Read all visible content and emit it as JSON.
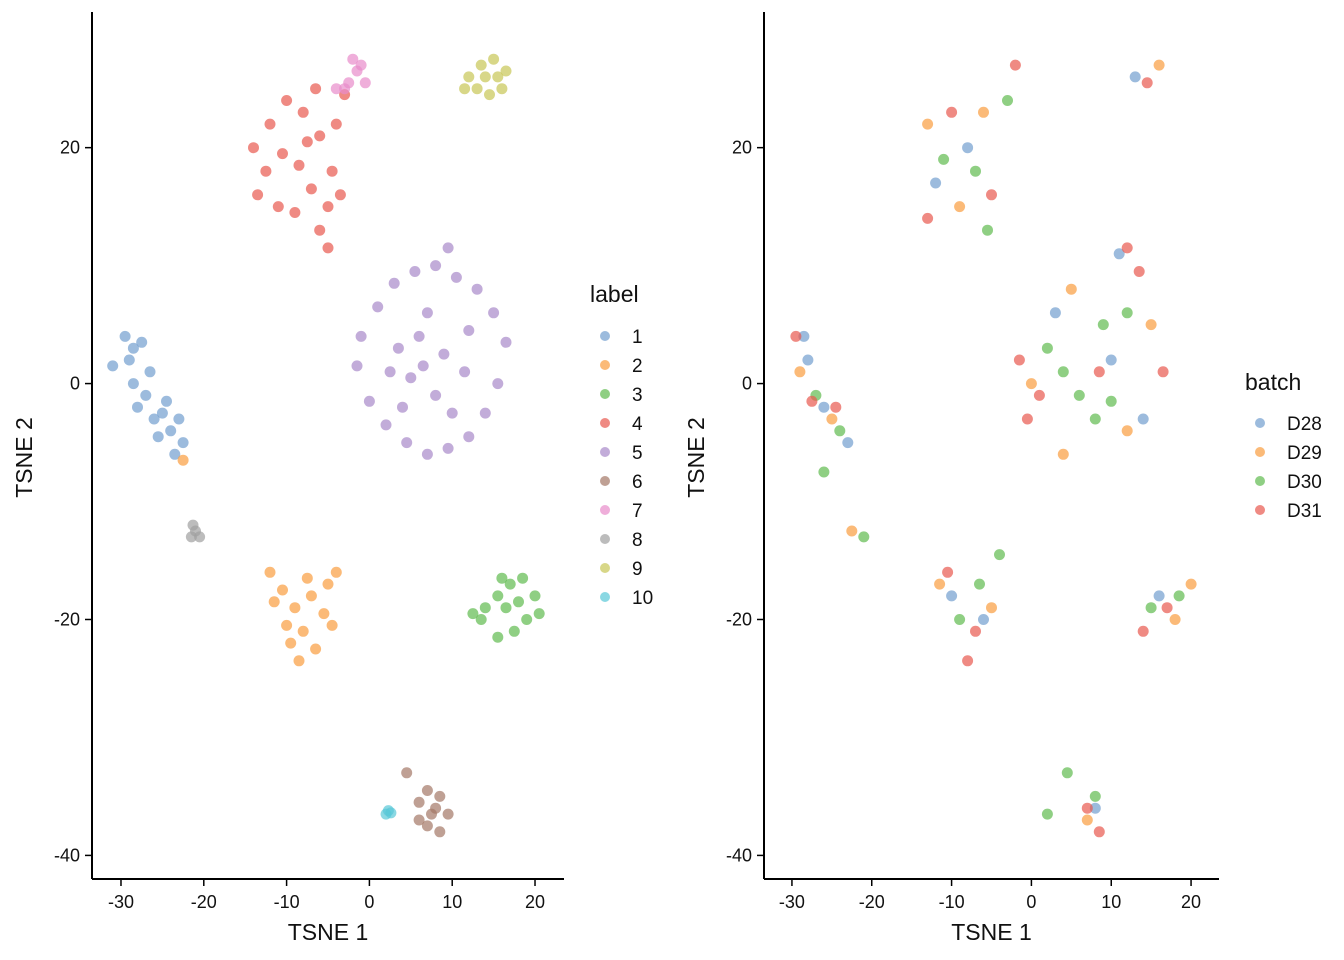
{
  "chart_data": [
    {
      "type": "scatter",
      "xlabel": "TSNE 1",
      "ylabel": "TSNE 2",
      "xlim": [
        -33.5,
        23.5
      ],
      "ylim": [
        -42,
        31.5
      ],
      "xticks": [
        -30,
        -20,
        -10,
        0,
        10,
        20
      ],
      "yticks": [
        -40,
        -20,
        0,
        20
      ],
      "xtick_labels": [
        "-30",
        "-20",
        "-10",
        "0",
        "10",
        "20"
      ],
      "ytick_labels": [
        "-40",
        "-20",
        "0",
        "20"
      ],
      "legend_title": "label",
      "legend_position": "right",
      "grid": false,
      "series": [
        {
          "name": "1",
          "color": "#729ECE",
          "values": [
            [
              -29.5,
              4.0
            ],
            [
              -29.0,
              2.0
            ],
            [
              -28.5,
              0.0
            ],
            [
              -28.0,
              -2.0
            ],
            [
              -27.0,
              -1.0
            ],
            [
              -26.0,
              -3.0
            ],
            [
              -25.0,
              -2.5
            ],
            [
              -24.0,
              -4.0
            ],
            [
              -23.0,
              -3.0
            ],
            [
              -22.5,
              -5.0
            ],
            [
              -27.5,
              3.5
            ],
            [
              -26.5,
              1.0
            ],
            [
              -25.5,
              -4.5
            ],
            [
              -24.5,
              -1.5
            ],
            [
              -23.5,
              -6.0
            ],
            [
              -28.5,
              3.0
            ],
            [
              -31.0,
              1.5
            ]
          ]
        },
        {
          "name": "2",
          "color": "#F99D3F",
          "values": [
            [
              -12.0,
              -16.0
            ],
            [
              -10.5,
              -17.5
            ],
            [
              -9.0,
              -19.0
            ],
            [
              -8.0,
              -21.0
            ],
            [
              -7.0,
              -18.0
            ],
            [
              -5.5,
              -19.5
            ],
            [
              -4.5,
              -20.5
            ],
            [
              -6.5,
              -22.5
            ],
            [
              -8.5,
              -23.5
            ],
            [
              -10.0,
              -20.5
            ],
            [
              -11.5,
              -18.5
            ],
            [
              -5.0,
              -17.0
            ],
            [
              -7.5,
              -16.5
            ],
            [
              -9.5,
              -22.0
            ],
            [
              -4.0,
              -16.0
            ],
            [
              -22.5,
              -6.5
            ]
          ]
        },
        {
          "name": "3",
          "color": "#5FBA4E",
          "values": [
            [
              14.0,
              -19.0
            ],
            [
              15.5,
              -18.0
            ],
            [
              17.0,
              -17.0
            ],
            [
              18.5,
              -16.5
            ],
            [
              20.0,
              -18.0
            ],
            [
              19.0,
              -20.0
            ],
            [
              17.5,
              -21.0
            ],
            [
              15.5,
              -21.5
            ],
            [
              13.5,
              -20.0
            ],
            [
              16.5,
              -19.0
            ],
            [
              18.0,
              -18.5
            ],
            [
              12.5,
              -19.5
            ],
            [
              20.5,
              -19.5
            ],
            [
              16.0,
              -16.5
            ]
          ]
        },
        {
          "name": "4",
          "color": "#E8594F",
          "values": [
            [
              -14.0,
              20.0
            ],
            [
              -12.0,
              22.0
            ],
            [
              -10.0,
              24.0
            ],
            [
              -8.0,
              23.0
            ],
            [
              -6.0,
              21.0
            ],
            [
              -4.5,
              18.0
            ],
            [
              -5.0,
              15.0
            ],
            [
              -7.0,
              16.5
            ],
            [
              -9.0,
              14.5
            ],
            [
              -11.0,
              15.0
            ],
            [
              -13.5,
              16.0
            ],
            [
              -10.5,
              19.5
            ],
            [
              -8.5,
              18.5
            ],
            [
              -6.5,
              25.0
            ],
            [
              -4.0,
              22.0
            ],
            [
              -3.0,
              24.5
            ],
            [
              -6.0,
              13.0
            ],
            [
              -5.0,
              11.5
            ],
            [
              -3.5,
              16.0
            ],
            [
              -12.5,
              18.0
            ],
            [
              -7.5,
              20.5
            ]
          ]
        },
        {
          "name": "5",
          "color": "#A889C9",
          "values": [
            [
              -1.0,
              4.0
            ],
            [
              1.0,
              6.5
            ],
            [
              3.0,
              8.5
            ],
            [
              5.5,
              9.5
            ],
            [
              8.0,
              10.0
            ],
            [
              10.5,
              9.0
            ],
            [
              13.0,
              8.0
            ],
            [
              15.0,
              6.0
            ],
            [
              16.5,
              3.5
            ],
            [
              15.5,
              0.0
            ],
            [
              14.0,
              -2.5
            ],
            [
              12.0,
              -4.5
            ],
            [
              9.5,
              -5.5
            ],
            [
              7.0,
              -6.0
            ],
            [
              4.5,
              -5.0
            ],
            [
              2.0,
              -3.5
            ],
            [
              0.0,
              -1.5
            ],
            [
              -1.5,
              1.5
            ],
            [
              3.5,
              3.0
            ],
            [
              6.0,
              4.0
            ],
            [
              9.0,
              2.5
            ],
            [
              11.5,
              1.0
            ],
            [
              8.0,
              -1.0
            ],
            [
              5.0,
              0.5
            ],
            [
              2.5,
              1.0
            ],
            [
              7.0,
              6.0
            ],
            [
              12.0,
              4.5
            ],
            [
              10.0,
              -2.5
            ],
            [
              4.0,
              -2.0
            ],
            [
              6.5,
              1.5
            ],
            [
              9.5,
              11.5
            ]
          ]
        },
        {
          "name": "6",
          "color": "#A47766",
          "values": [
            [
              6.0,
              -35.5
            ],
            [
              7.0,
              -34.5
            ],
            [
              8.5,
              -35.0
            ],
            [
              9.5,
              -36.5
            ],
            [
              8.5,
              -38.0
            ],
            [
              7.0,
              -37.5
            ],
            [
              6.0,
              -37.0
            ],
            [
              7.5,
              -36.5
            ],
            [
              8.0,
              -36.0
            ],
            [
              4.5,
              -33.0
            ]
          ]
        },
        {
          "name": "7",
          "color": "#E88BCB",
          "values": [
            [
              -2.5,
              25.5
            ],
            [
              -1.5,
              26.5
            ],
            [
              -2.0,
              27.5
            ],
            [
              -0.5,
              25.5
            ],
            [
              -3.0,
              25.0
            ],
            [
              -1.0,
              27.0
            ],
            [
              -4.0,
              25.0
            ]
          ]
        },
        {
          "name": "8",
          "color": "#9F9F9F",
          "values": [
            [
              -21.5,
              -13.0
            ],
            [
              -21.0,
              -12.5
            ],
            [
              -20.5,
              -13.0
            ],
            [
              -21.3,
              -12.0
            ]
          ]
        },
        {
          "name": "9",
          "color": "#C7C656",
          "values": [
            [
              12.0,
              26.0
            ],
            [
              13.5,
              27.0
            ],
            [
              15.0,
              27.5
            ],
            [
              16.5,
              26.5
            ],
            [
              16.0,
              25.0
            ],
            [
              14.5,
              24.5
            ],
            [
              13.0,
              25.0
            ],
            [
              14.0,
              26.0
            ],
            [
              15.5,
              26.0
            ],
            [
              11.5,
              25.0
            ]
          ]
        },
        {
          "name": "10",
          "color": "#59C8D7",
          "values": [
            [
              2.0,
              -36.5
            ],
            [
              2.3,
              -36.2
            ],
            [
              2.6,
              -36.4
            ]
          ]
        }
      ]
    },
    {
      "type": "scatter",
      "xlabel": "TSNE 1",
      "ylabel": "TSNE 2",
      "xlim": [
        -33.5,
        23.5
      ],
      "ylim": [
        -42,
        31.5
      ],
      "xticks": [
        -30,
        -20,
        -10,
        0,
        10,
        20
      ],
      "yticks": [
        -40,
        -20,
        0,
        20
      ],
      "xtick_labels": [
        "-30",
        "-20",
        "-10",
        "0",
        "10",
        "20"
      ],
      "ytick_labels": [
        "-40",
        "-20",
        "0",
        "20"
      ],
      "legend_title": "batch",
      "legend_position": "right",
      "grid": false,
      "series": [
        {
          "name": "D28",
          "color": "#729ECE",
          "values": [
            [
              -28.0,
              2.0
            ],
            [
              -26.0,
              -2.0
            ],
            [
              -23.0,
              -5.0
            ],
            [
              -12.0,
              17.0
            ],
            [
              -8.0,
              20.0
            ],
            [
              -10.0,
              -18.0
            ],
            [
              -6.0,
              -20.0
            ],
            [
              3.0,
              6.0
            ],
            [
              10.0,
              2.0
            ],
            [
              14.0,
              -3.0
            ],
            [
              16.0,
              -18.0
            ],
            [
              13.0,
              26.0
            ],
            [
              8.0,
              -36.0
            ],
            [
              -28.5,
              4.0
            ],
            [
              11.0,
              11.0
            ]
          ]
        },
        {
          "name": "D29",
          "color": "#F99D3F",
          "values": [
            [
              -29.0,
              1.0
            ],
            [
              -25.0,
              -3.0
            ],
            [
              -13.0,
              22.0
            ],
            [
              -9.0,
              15.0
            ],
            [
              -6.0,
              23.0
            ],
            [
              -11.5,
              -17.0
            ],
            [
              -5.0,
              -19.0
            ],
            [
              0.0,
              0.0
            ],
            [
              5.0,
              8.0
            ],
            [
              12.0,
              -4.0
            ],
            [
              15.0,
              5.0
            ],
            [
              18.0,
              -20.0
            ],
            [
              20.0,
              -17.0
            ],
            [
              16.0,
              27.0
            ],
            [
              7.0,
              -37.0
            ],
            [
              -22.5,
              -12.5
            ],
            [
              4.0,
              -6.0
            ]
          ]
        },
        {
          "name": "D30",
          "color": "#5FBA4E",
          "values": [
            [
              -27.0,
              -1.0
            ],
            [
              -24.0,
              -4.0
            ],
            [
              -26.0,
              -7.5
            ],
            [
              -11.0,
              19.0
            ],
            [
              -7.0,
              18.0
            ],
            [
              -3.0,
              24.0
            ],
            [
              -5.5,
              13.0
            ],
            [
              -9.0,
              -20.0
            ],
            [
              -4.0,
              -14.5
            ],
            [
              -6.5,
              -17.0
            ],
            [
              2.0,
              3.0
            ],
            [
              6.0,
              -1.0
            ],
            [
              9.0,
              5.0
            ],
            [
              12.0,
              6.0
            ],
            [
              8.0,
              -3.0
            ],
            [
              15.0,
              -19.0
            ],
            [
              18.5,
              -18.0
            ],
            [
              8.0,
              -35.0
            ],
            [
              4.5,
              -33.0
            ],
            [
              2.0,
              -36.5
            ],
            [
              -21.0,
              -13.0
            ],
            [
              10.0,
              -1.5
            ],
            [
              4.0,
              1.0
            ]
          ]
        },
        {
          "name": "D31",
          "color": "#E8594F",
          "values": [
            [
              -29.5,
              4.0
            ],
            [
              -27.5,
              -1.5
            ],
            [
              -24.5,
              -2.0
            ],
            [
              -13.0,
              14.0
            ],
            [
              -10.0,
              23.0
            ],
            [
              -5.0,
              16.0
            ],
            [
              -2.0,
              27.0
            ],
            [
              -10.5,
              -16.0
            ],
            [
              -8.0,
              -23.5
            ],
            [
              -7.0,
              -21.0
            ],
            [
              -1.5,
              2.0
            ],
            [
              -0.5,
              -3.0
            ],
            [
              8.5,
              1.0
            ],
            [
              13.5,
              9.5
            ],
            [
              16.5,
              1.0
            ],
            [
              17.0,
              -19.0
            ],
            [
              14.0,
              -21.0
            ],
            [
              14.5,
              25.5
            ],
            [
              8.5,
              -38.0
            ],
            [
              7.0,
              -36.0
            ],
            [
              12.0,
              11.5
            ],
            [
              1.0,
              -1.0
            ]
          ]
        }
      ]
    }
  ]
}
